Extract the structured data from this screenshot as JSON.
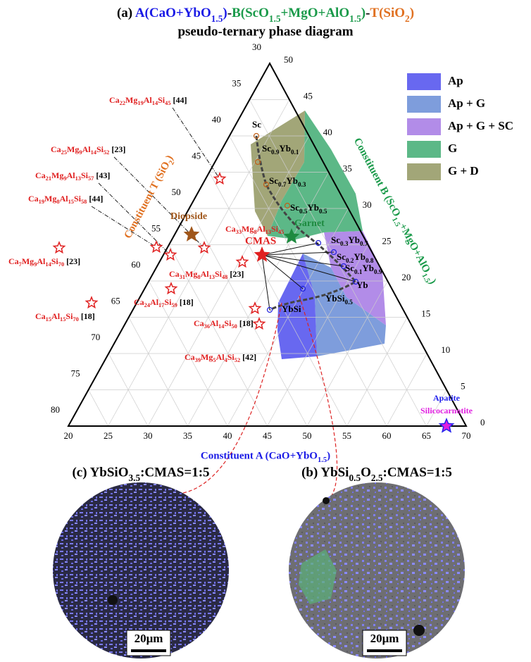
{
  "title": {
    "panel": "(a)",
    "a": "A(CaO+YbO1.5)",
    "sep1": "-",
    "b": "B(ScO1.5+MgO+AlO1.5)",
    "sep2": "-",
    "t": "T(SiO2)",
    "subtitle": "pseudo-ternary phase diagram"
  },
  "axes": {
    "a_label": "Constituent A (CaO+YbO1.5)",
    "b_label": "Constituent B (ScO1.5+MgO+AlO1.5)",
    "t_label": "Constituent T (SiO2)",
    "a_ticks": [
      20,
      25,
      30,
      35,
      40,
      45,
      50,
      55,
      60,
      65,
      70
    ],
    "t_ticks": [
      30,
      35,
      40,
      45,
      50,
      55,
      60,
      65,
      70,
      75,
      80
    ],
    "b_ticks": [
      0,
      5,
      10,
      15,
      20,
      25,
      30,
      35,
      40,
      45,
      50
    ]
  },
  "legend": [
    "Ap",
    "Ap + G",
    "Ap + G + SC",
    "G",
    "G + D"
  ],
  "phases": {
    "diopside": "Diopside",
    "garnet": "Garnet",
    "cmas": "CMAS",
    "apatite": "Apatite",
    "silicocarnotite": "Silicocarnotite",
    "cmas_formula": "Ca33Mg8Al13Si45"
  },
  "compositions": [
    "Sc",
    "Sc0.9Yb0.1",
    "Sc0.7Yb0.3",
    "Sc0.5Yb0.5",
    "Sc0.3Yb0.7",
    "Sc0.2Yb0.8",
    "Sc0.1Yb0.9",
    "Yb",
    "YbSi0.5",
    "YbSi"
  ],
  "literature": [
    {
      "formula": "Ca22Mg19Al14Si45",
      "ref": "[44]"
    },
    {
      "formula": "Ca25Mg9Al14Si52",
      "ref": "[23]"
    },
    {
      "formula": "Ca21Mg9Al13Si57",
      "ref": "[43]"
    },
    {
      "formula": "Ca19Mg8Al15Si58",
      "ref": "[44]"
    },
    {
      "formula": "Ca7Mg9Al14Si70",
      "ref": "[23]"
    },
    {
      "formula": "Ca15Al15Si70",
      "ref": "[18]"
    },
    {
      "formula": "Ca31Mg8Al13Si48",
      "ref": "[23]"
    },
    {
      "formula": "Ca24Al17Si59",
      "ref": "[18]"
    },
    {
      "formula": "Ca36Al14Si50",
      "ref": "[18]"
    },
    {
      "formula": "Ca39Mg5Al4Si52",
      "ref": "[42]"
    }
  ],
  "micrographs": [
    {
      "label": "(c) YbSiO3.5:CMAS=1:5",
      "scale": "20μm"
    },
    {
      "label": "(b) YbSi0.5O2.5:CMAS=1:5",
      "scale": "20μm"
    }
  ]
}
